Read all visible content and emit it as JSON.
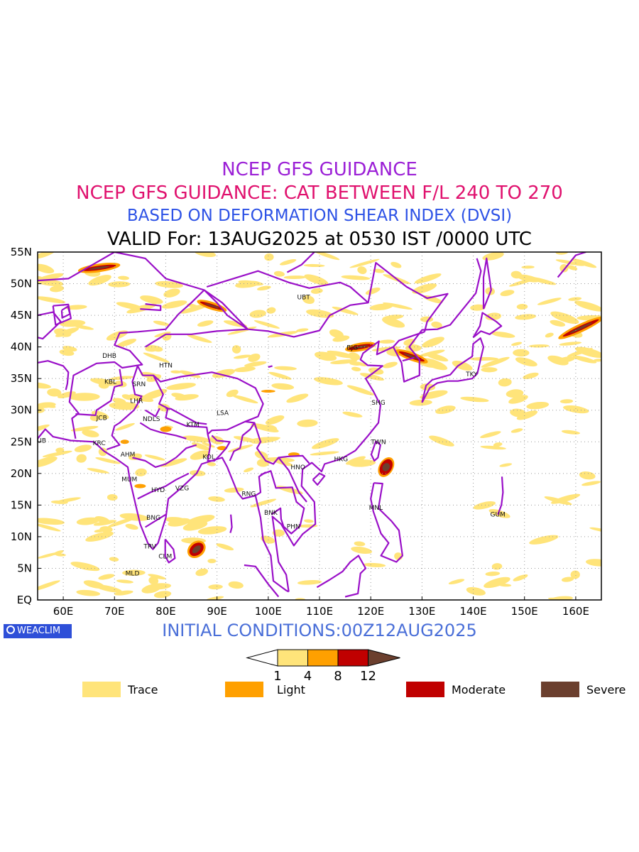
{
  "titles": {
    "line1": "NCEP GFS GUIDANCE",
    "line2": "NCEP GFS GUIDANCE: CAT BETWEEN F/L 240 TO 270",
    "line3": "BASED ON DEFORMATION SHEAR INDEX (DVSI)",
    "line4": "VALID For: 13AUG2025 at 0530 IST /0000 UTC"
  },
  "initial_conditions": "INITIAL CONDITIONS:00Z12AUG2025",
  "logo_text": "WEACLIM",
  "map": {
    "lon_ticks": [
      "60E",
      "70E",
      "80E",
      "90E",
      "100E",
      "110E",
      "120E",
      "130E",
      "140E",
      "150E",
      "160E"
    ],
    "lat_ticks": [
      "EQ",
      "5N",
      "10N",
      "15N",
      "20N",
      "25N",
      "30N",
      "35N",
      "40N",
      "45N",
      "50N",
      "55N"
    ],
    "lon_range": [
      55,
      165
    ],
    "lat_range": [
      0,
      55
    ],
    "grid": "dotted",
    "stations": [
      {
        "code": "UBT",
        "lon": 106.9,
        "lat": 47.9
      },
      {
        "code": "BJG",
        "lon": 116.4,
        "lat": 39.9
      },
      {
        "code": "DHB",
        "lon": 69,
        "lat": 38.6
      },
      {
        "code": "HTN",
        "lon": 80,
        "lat": 37.1
      },
      {
        "code": "KBL",
        "lon": 69.2,
        "lat": 34.5
      },
      {
        "code": "SRN",
        "lon": 74.8,
        "lat": 34.1
      },
      {
        "code": "LHR",
        "lon": 74.3,
        "lat": 31.5
      },
      {
        "code": "TKY",
        "lon": 139.7,
        "lat": 35.7
      },
      {
        "code": "SHG",
        "lon": 121.5,
        "lat": 31.2
      },
      {
        "code": "LSA",
        "lon": 91.1,
        "lat": 29.6
      },
      {
        "code": "JCB",
        "lon": 67.5,
        "lat": 28.8
      },
      {
        "code": "NDLS",
        "lon": 77.2,
        "lat": 28.6
      },
      {
        "code": "KTM",
        "lon": 85.3,
        "lat": 27.7
      },
      {
        "code": "DUB",
        "lon": 55.3,
        "lat": 25.2
      },
      {
        "code": "KRC",
        "lon": 67,
        "lat": 24.8
      },
      {
        "code": "TWN",
        "lon": 121.5,
        "lat": 25
      },
      {
        "code": "AHM",
        "lon": 72.6,
        "lat": 23
      },
      {
        "code": "KOL",
        "lon": 88.4,
        "lat": 22.6
      },
      {
        "code": "HKG",
        "lon": 114.2,
        "lat": 22.3
      },
      {
        "code": "HNO",
        "lon": 105.8,
        "lat": 21
      },
      {
        "code": "MUM",
        "lon": 72.9,
        "lat": 19.1
      },
      {
        "code": "HYD",
        "lon": 78.5,
        "lat": 17.4
      },
      {
        "code": "VZG",
        "lon": 83.2,
        "lat": 17.7
      },
      {
        "code": "RNG",
        "lon": 96.2,
        "lat": 16.8
      },
      {
        "code": "BNK",
        "lon": 100.5,
        "lat": 13.8
      },
      {
        "code": "MNL",
        "lon": 121,
        "lat": 14.6
      },
      {
        "code": "GUM",
        "lon": 144.8,
        "lat": 13.5
      },
      {
        "code": "PHN",
        "lon": 104.9,
        "lat": 11.6
      },
      {
        "code": "BNG",
        "lon": 77.6,
        "lat": 13
      },
      {
        "code": "TRV",
        "lon": 76.9,
        "lat": 8.5
      },
      {
        "code": "CLM",
        "lon": 79.9,
        "lat": 6.9
      },
      {
        "code": "MLD",
        "lon": 73.5,
        "lat": 4.2
      }
    ]
  },
  "colorbar": {
    "thresholds": [
      "1",
      "4",
      "8",
      "12"
    ],
    "colors": [
      "#ffffff",
      "#ffe47a",
      "#ffa000",
      "#c00000",
      "#6b3f2e"
    ]
  },
  "legend": [
    {
      "label": "Trace",
      "color": "#ffe47a"
    },
    {
      "label": "Light",
      "color": "#ffa000"
    },
    {
      "label": "Moderate",
      "color": "#c00000"
    },
    {
      "label": "Severe",
      "color": "#6b3f2e"
    }
  ],
  "colors": {
    "boundary": "#9a10c8",
    "trace": "#ffe47a",
    "light": "#ffa000",
    "moderate": "#c00000",
    "severe": "#6b3f2e"
  }
}
